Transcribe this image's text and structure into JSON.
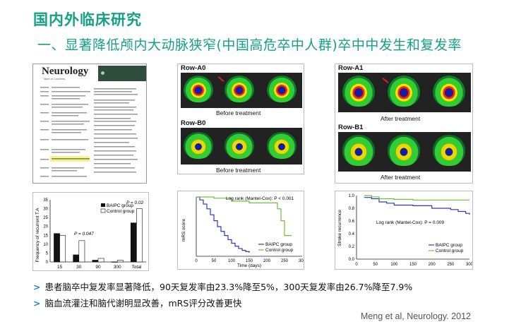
{
  "slide": {
    "title": "国内外临床研究",
    "subtitle": "一、显著降低颅内大动脉狭窄(中国高危卒中人群)卒中中发生和复发率"
  },
  "journal": {
    "logo": "Neurology",
    "sub": "Table of Contents"
  },
  "scans_before": {
    "row_a_label": "Row-A0",
    "row_b_label": "Row-B0",
    "caption_a": "Before treatment",
    "caption_b": "Before treatment"
  },
  "scans_after": {
    "row_a_label": "Row-A1",
    "row_b_label": "Row-B1",
    "caption_a": "After treatment",
    "caption_b": "After treatment"
  },
  "bar_chart": {
    "ylabel": "Frequency of recurrent T.A",
    "yticks": [
      "0",
      "5",
      "10",
      "15",
      "20",
      "25",
      "30",
      "35"
    ],
    "legend": [
      "BAIPC group",
      "Control group"
    ],
    "p_label_1": "P = 0.047",
    "p_label_2": "P = 0.02"
  },
  "mrs_chart": {
    "ylabel": "mRS score",
    "xlabel": "Time (days)",
    "annotation": "Log rank (Mantel-Cox): P < 0.001",
    "legend": [
      "BAIPC group",
      "Control group"
    ],
    "xticks": [
      "0",
      "50",
      "100",
      "150",
      "200",
      "250",
      "300"
    ]
  },
  "recurrence_chart": {
    "ylabel": "Stroke recurrence",
    "annotation": "Log rank (Mantel-Cox): P = 0.009",
    "legend": [
      "BAIPC group",
      "Control group"
    ],
    "xticks": [
      "0",
      "50",
      "100",
      "150",
      "200",
      "250",
      "300"
    ],
    "yticks": [
      "0.0",
      "0.2",
      "0.4",
      "0.6",
      "0.8",
      "1.0"
    ]
  },
  "chart_data": [
    {
      "type": "bar",
      "categories": [
        "15",
        "30",
        "90",
        "300",
        "Total"
      ],
      "series": [
        {
          "name": "BAIPC group",
          "values": [
            16,
            4,
            1,
            0,
            22
          ]
        },
        {
          "name": "Control group",
          "values": [
            15,
            12,
            2,
            1,
            30
          ]
        }
      ],
      "ylabel": "Frequency of recurrent T.A",
      "ylim": [
        0,
        35
      ],
      "legend": "top-right"
    },
    {
      "type": "line",
      "ylabel": "mRS score",
      "xlabel": "Time (days)",
      "xlim": [
        0,
        300
      ],
      "ylim": [
        0,
        1
      ],
      "series": [
        {
          "name": "BAIPC group",
          "x": [
            0,
            10,
            20,
            30,
            40,
            50,
            60,
            70,
            80,
            90,
            100,
            110,
            120,
            130,
            140,
            150
          ],
          "y": [
            1.0,
            0.95,
            0.88,
            0.8,
            0.7,
            0.6,
            0.5,
            0.42,
            0.35,
            0.28,
            0.22,
            0.17,
            0.13,
            0.1,
            0.08,
            0.06
          ]
        },
        {
          "name": "Control group",
          "x": [
            0,
            50,
            100,
            150,
            200,
            230,
            240,
            250,
            260,
            270
          ],
          "y": [
            1.0,
            0.98,
            0.93,
            0.9,
            0.9,
            0.8,
            0.6,
            0.35,
            0.35,
            0.35
          ]
        }
      ],
      "annotation": "Log rank (Mantel-Cox): P < 0.001",
      "legend": "bottom-right"
    },
    {
      "type": "line",
      "ylabel": "Stroke recurrence",
      "xlim": [
        0,
        300
      ],
      "ylim": [
        0,
        1
      ],
      "series": [
        {
          "name": "BAIPC group",
          "x": [
            20,
            40,
            60,
            80,
            100,
            150,
            200,
            250,
            270,
            290,
            300
          ],
          "y": [
            0.97,
            0.95,
            0.9,
            0.88,
            0.85,
            0.84,
            0.8,
            0.78,
            0.75,
            0.72,
            0.7
          ]
        },
        {
          "name": "Control group",
          "x": [
            20,
            40,
            60,
            100,
            150,
            200,
            250,
            300
          ],
          "y": [
            1.0,
            0.98,
            0.95,
            0.94,
            0.93,
            0.93,
            0.93,
            0.93
          ]
        }
      ],
      "annotation": "Log rank (Mantel-Cox): P = 0.009",
      "legend": "bottom-right"
    }
  ],
  "bullets": [
    "患者脑卒中复发率显著降低，90天复发率由23.3%降至5%，300天复发率由26.7%降至7.9%",
    "脑血流灌注和脑代谢明显改善，mRS评分改善更快"
  ],
  "citation": "Meng et al, Neurology. 2012",
  "colors": {
    "title_green": "#16a085",
    "bullet_blue": "#2a7fd4",
    "baipc_line": "#2b3ab8",
    "control_line": "#6fbf3a"
  }
}
